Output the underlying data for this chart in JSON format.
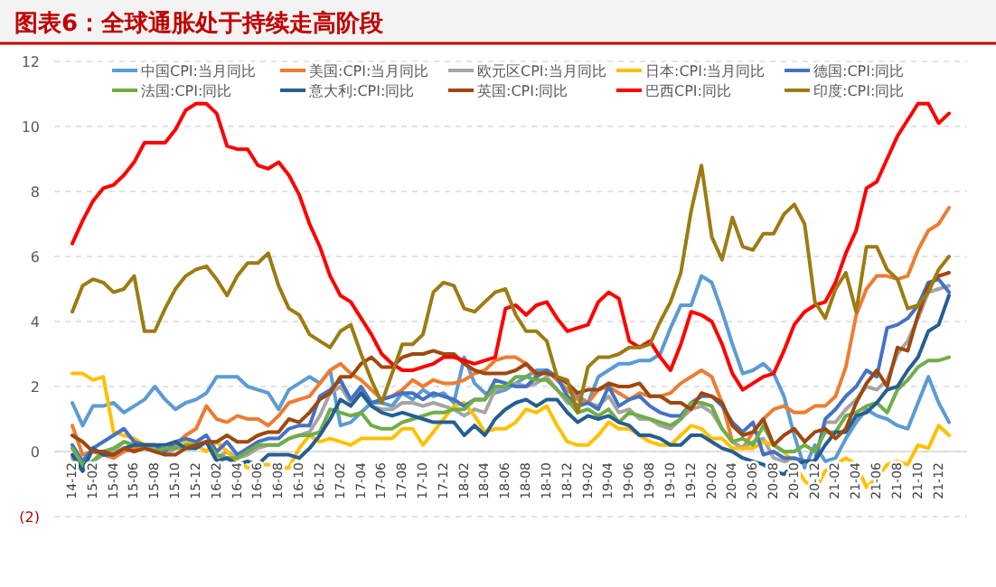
{
  "chart_data": {
    "type": "line",
    "title": "图表6：全球通胀处于持续走高阶段",
    "categories": [
      "14-12",
      null,
      "15-02",
      null,
      "15-04",
      null,
      "15-06",
      null,
      "15-08",
      null,
      "15-10",
      null,
      "15-12",
      null,
      "16-02",
      null,
      "16-04",
      null,
      "16-06",
      null,
      "16-08",
      null,
      "16-10",
      null,
      "16-12",
      null,
      "17-02",
      null,
      "17-04",
      null,
      "17-06",
      null,
      "17-08",
      null,
      "17-10",
      null,
      "17-12",
      null,
      "18-02",
      null,
      "18-04",
      null,
      "18-06",
      null,
      "18-08",
      null,
      "18-10",
      null,
      "18-12",
      null,
      "19-02",
      null,
      "19-04",
      null,
      "19-06",
      null,
      "19-08",
      null,
      "19-10",
      null,
      "19-12",
      null,
      "20-02",
      null,
      "20-04",
      null,
      "20-06",
      null,
      "20-08",
      null,
      "20-10",
      null,
      "20-12",
      null,
      "21-02",
      null,
      "21-04",
      null,
      "21-06",
      null,
      "21-08",
      null,
      "21-10",
      null,
      "21-12",
      null
    ],
    "ylim": [
      -2,
      12
    ],
    "yticks": [
      {
        "value": -2,
        "label": "(2)"
      },
      0,
      2,
      4,
      6,
      8,
      10,
      12
    ],
    "grid": "y",
    "legend": "top",
    "marker": "none",
    "line_style": "solid",
    "series": [
      {
        "name": "中国CPI:当月同比",
        "color": "#5b9bd5",
        "values": [
          1.5,
          0.8,
          1.4,
          1.4,
          1.5,
          1.2,
          1.4,
          1.6,
          2.0,
          1.6,
          1.3,
          1.5,
          1.6,
          1.8,
          2.3,
          2.3,
          2.3,
          2.0,
          1.9,
          1.8,
          1.3,
          1.9,
          2.1,
          2.3,
          2.1,
          2.5,
          0.8,
          0.9,
          1.2,
          1.5,
          1.5,
          1.4,
          1.8,
          1.6,
          1.9,
          1.7,
          1.8,
          1.5,
          2.9,
          2.1,
          1.8,
          1.8,
          1.9,
          2.1,
          2.3,
          2.5,
          2.5,
          2.2,
          1.9,
          1.7,
          1.5,
          2.3,
          2.5,
          2.7,
          2.7,
          2.8,
          2.8,
          3.0,
          3.8,
          4.5,
          4.5,
          5.4,
          5.2,
          4.3,
          3.3,
          2.4,
          2.5,
          2.7,
          2.4,
          1.7,
          0.5,
          -0.5,
          0.2,
          -0.3,
          -0.2,
          0.4,
          0.9,
          1.3,
          1.1,
          1.0,
          0.8,
          0.7,
          1.5,
          2.3,
          1.5,
          0.9
        ]
      },
      {
        "name": "美国:CPI:当月同比",
        "color": "#ed7d31",
        "values": [
          0.8,
          -0.1,
          0.0,
          -0.1,
          -0.2,
          0.0,
          0.1,
          0.2,
          0.2,
          0.0,
          0.2,
          0.5,
          0.7,
          1.4,
          1.0,
          0.9,
          1.1,
          1.0,
          1.0,
          0.8,
          1.1,
          1.5,
          1.6,
          1.7,
          2.1,
          2.5,
          2.7,
          2.4,
          2.2,
          1.9,
          1.6,
          1.7,
          1.9,
          2.2,
          2.0,
          2.2,
          2.1,
          2.1,
          2.2,
          2.4,
          2.5,
          2.8,
          2.9,
          2.9,
          2.7,
          2.3,
          2.5,
          2.2,
          1.9,
          1.6,
          1.5,
          1.9,
          2.0,
          1.8,
          1.6,
          1.8,
          1.7,
          1.7,
          1.8,
          2.1,
          2.3,
          2.5,
          2.3,
          1.5,
          0.3,
          0.1,
          0.6,
          1.0,
          1.3,
          1.4,
          1.2,
          1.2,
          1.4,
          1.4,
          1.7,
          2.6,
          4.2,
          5.0,
          5.4,
          5.4,
          5.3,
          5.4,
          6.2,
          6.8,
          7.0,
          7.5
        ]
      },
      {
        "name": "欧元区CPI:当月同比",
        "color": "#a5a5a5",
        "values": [
          -0.2,
          -0.6,
          -0.3,
          -0.1,
          0.0,
          0.3,
          0.2,
          0.2,
          0.1,
          -0.1,
          0.1,
          0.1,
          0.2,
          0.3,
          -0.2,
          0.0,
          -0.2,
          -0.1,
          0.1,
          0.2,
          0.2,
          0.4,
          0.5,
          0.6,
          1.1,
          1.8,
          2.0,
          1.5,
          1.9,
          1.4,
          1.3,
          1.3,
          1.5,
          1.5,
          1.4,
          1.5,
          1.4,
          1.3,
          1.1,
          1.3,
          1.2,
          1.9,
          2.0,
          2.1,
          2.0,
          2.1,
          2.3,
          1.9,
          1.5,
          1.4,
          1.5,
          1.4,
          1.7,
          1.2,
          1.3,
          1.0,
          1.0,
          0.8,
          0.7,
          1.0,
          1.3,
          1.4,
          1.2,
          0.7,
          0.3,
          0.1,
          0.3,
          0.4,
          -0.2,
          -0.3,
          -0.3,
          -0.3,
          -0.3,
          0.9,
          0.9,
          1.3,
          1.6,
          2.0,
          1.9,
          2.2,
          3.0,
          3.4,
          4.1,
          4.9,
          5.0,
          5.1
        ]
      },
      {
        "name": "日本:CPI:当月同比",
        "color": "#ffc000",
        "values": [
          2.4,
          2.4,
          2.2,
          2.3,
          0.6,
          0.5,
          0.4,
          0.2,
          0.2,
          0.0,
          0.3,
          0.3,
          0.2,
          0.0,
          0.3,
          0.0,
          -0.3,
          -0.5,
          -0.4,
          -0.4,
          -0.5,
          -0.5,
          0.1,
          0.5,
          0.3,
          0.4,
          0.3,
          0.2,
          0.4,
          0.4,
          0.4,
          0.4,
          0.7,
          0.7,
          0.2,
          0.6,
          1.0,
          1.4,
          1.5,
          1.1,
          0.6,
          0.7,
          0.7,
          0.9,
          1.3,
          1.2,
          1.4,
          0.8,
          0.3,
          0.2,
          0.2,
          0.5,
          0.9,
          0.7,
          0.7,
          0.5,
          0.3,
          0.2,
          0.2,
          0.5,
          0.8,
          0.7,
          0.4,
          0.4,
          0.1,
          0.1,
          0.1,
          0.3,
          0.2,
          0.0,
          -0.4,
          -0.9,
          -1.2,
          -0.6,
          -0.4,
          -0.2,
          -0.4,
          -1.1,
          -0.8,
          -0.4,
          -0.3,
          -0.4,
          0.2,
          0.1,
          0.8,
          0.5
        ]
      },
      {
        "name": "德国:CPI:同比",
        "color": "#4472c4",
        "values": [
          0.2,
          -0.3,
          0.1,
          0.3,
          0.5,
          0.7,
          0.3,
          0.2,
          0.2,
          0.0,
          0.3,
          0.4,
          0.3,
          0.5,
          0.0,
          0.3,
          -0.1,
          0.1,
          0.3,
          0.4,
          0.4,
          0.7,
          0.8,
          0.8,
          1.7,
          1.9,
          2.2,
          1.6,
          2.0,
          1.5,
          1.6,
          1.7,
          1.8,
          1.8,
          1.6,
          1.8,
          1.7,
          1.6,
          1.4,
          1.6,
          1.6,
          2.2,
          2.1,
          2.0,
          2.0,
          2.3,
          2.5,
          2.3,
          1.7,
          1.4,
          1.5,
          1.3,
          2.0,
          1.4,
          1.6,
          1.7,
          1.4,
          1.2,
          1.1,
          1.1,
          1.5,
          1.7,
          1.7,
          1.4,
          0.9,
          0.6,
          0.9,
          -0.1,
          0.0,
          -0.2,
          -0.2,
          -0.3,
          -0.3,
          1.0,
          1.3,
          1.7,
          2.0,
          2.5,
          2.3,
          3.8,
          3.9,
          4.1,
          4.5,
          5.2,
          5.3,
          4.9
        ]
      },
      {
        "name": "法国:CPI:同比",
        "color": "#70ad47",
        "values": [
          0.1,
          -0.4,
          -0.3,
          0.0,
          0.1,
          0.3,
          0.2,
          0.2,
          0.0,
          0.1,
          0.1,
          0.2,
          0.2,
          0.3,
          -0.1,
          -0.2,
          -0.2,
          0.0,
          0.2,
          0.2,
          0.2,
          0.4,
          0.5,
          0.5,
          0.6,
          1.3,
          1.2,
          1.1,
          1.2,
          0.8,
          0.7,
          0.7,
          0.9,
          1.0,
          1.1,
          1.2,
          1.2,
          1.3,
          1.3,
          1.6,
          1.6,
          2.0,
          2.0,
          2.3,
          2.3,
          2.2,
          2.2,
          1.9,
          1.6,
          1.2,
          1.3,
          1.1,
          1.3,
          0.9,
          1.2,
          1.1,
          1.0,
          0.9,
          0.8,
          1.0,
          1.5,
          1.5,
          1.4,
          0.7,
          0.3,
          0.4,
          0.2,
          0.8,
          0.2,
          0.0,
          0.0,
          0.2,
          0.0,
          0.6,
          0.6,
          1.1,
          1.2,
          1.4,
          1.5,
          1.2,
          1.9,
          2.2,
          2.6,
          2.8,
          2.8,
          2.9
        ]
      },
      {
        "name": "意大利:CPI:同比",
        "color": "#255e91",
        "values": [
          -0.1,
          -0.6,
          0.1,
          -0.1,
          -0.1,
          0.1,
          0.2,
          0.2,
          0.2,
          0.2,
          0.3,
          0.1,
          0.1,
          0.3,
          -0.3,
          -0.2,
          -0.4,
          -0.3,
          -0.4,
          -0.1,
          -0.1,
          -0.1,
          -0.2,
          0.1,
          0.5,
          1.0,
          1.6,
          1.4,
          1.8,
          1.4,
          1.2,
          1.1,
          1.2,
          1.1,
          1.0,
          0.9,
          0.9,
          0.9,
          0.5,
          0.8,
          0.5,
          1.0,
          1.3,
          1.5,
          1.6,
          1.4,
          1.6,
          1.6,
          1.2,
          0.9,
          1.1,
          1.0,
          1.1,
          0.9,
          0.8,
          0.5,
          0.5,
          0.4,
          0.2,
          0.2,
          0.5,
          0.5,
          0.3,
          0.1,
          0.0,
          -0.2,
          -0.3,
          -0.4,
          -0.6,
          -0.7,
          -0.4,
          -0.3,
          -0.3,
          0.2,
          0.6,
          0.6,
          1.1,
          1.2,
          1.5,
          1.9,
          2.0,
          2.5,
          2.9,
          3.7,
          3.9,
          4.8
        ]
      },
      {
        "name": "英国:CPI:同比",
        "color": "#9e480e",
        "values": [
          0.5,
          0.3,
          0.0,
          0.0,
          -0.1,
          0.1,
          0.0,
          0.1,
          0.0,
          -0.1,
          -0.1,
          0.1,
          0.2,
          0.3,
          0.3,
          0.5,
          0.3,
          0.3,
          0.5,
          0.6,
          0.6,
          1.0,
          0.9,
          1.2,
          1.6,
          1.8,
          2.3,
          2.3,
          2.7,
          2.9,
          2.6,
          2.6,
          2.9,
          3.0,
          3.0,
          3.1,
          3.0,
          3.0,
          2.7,
          2.5,
          2.4,
          2.4,
          2.4,
          2.5,
          2.7,
          2.4,
          2.4,
          2.3,
          2.1,
          1.8,
          1.9,
          1.9,
          2.1,
          2.0,
          2.0,
          2.1,
          1.7,
          1.7,
          1.5,
          1.5,
          1.3,
          1.8,
          1.7,
          1.5,
          0.8,
          0.5,
          0.6,
          1.0,
          0.2,
          0.5,
          0.7,
          0.3,
          0.6,
          0.7,
          0.4,
          0.7,
          1.5,
          2.1,
          2.5,
          2.0,
          3.2,
          3.1,
          4.2,
          5.1,
          5.4,
          5.5
        ]
      },
      {
        "name": "巴西CPI:同比",
        "color": "#ff0000",
        "values": [
          6.4,
          7.1,
          7.7,
          8.1,
          8.2,
          8.5,
          8.9,
          9.5,
          9.5,
          9.5,
          9.9,
          10.5,
          10.7,
          10.7,
          10.4,
          9.4,
          9.3,
          9.3,
          8.8,
          8.7,
          8.9,
          8.5,
          7.9,
          7.0,
          6.3,
          5.4,
          4.8,
          4.6,
          4.1,
          3.6,
          3.0,
          2.7,
          2.5,
          2.5,
          2.6,
          2.7,
          2.9,
          2.9,
          2.8,
          2.7,
          2.8,
          2.9,
          4.4,
          4.5,
          4.2,
          4.5,
          4.6,
          4.1,
          3.7,
          3.8,
          3.9,
          4.6,
          4.9,
          4.7,
          3.4,
          3.2,
          3.4,
          2.9,
          2.5,
          3.3,
          4.3,
          4.2,
          4.0,
          3.3,
          2.4,
          1.9,
          2.1,
          2.3,
          2.4,
          3.1,
          3.9,
          4.3,
          4.5,
          4.6,
          5.2,
          6.1,
          6.8,
          8.1,
          8.3,
          9.0,
          9.7,
          10.2,
          10.7,
          10.7,
          10.1,
          10.4
        ]
      },
      {
        "name": "印度:CPI:同比",
        "color": "#9c7c12",
        "values": [
          4.3,
          5.1,
          5.3,
          5.2,
          4.9,
          5.0,
          5.4,
          3.7,
          3.7,
          4.4,
          5.0,
          5.4,
          5.6,
          5.7,
          5.3,
          4.8,
          5.4,
          5.8,
          5.8,
          6.1,
          5.1,
          4.4,
          4.2,
          3.6,
          3.4,
          3.2,
          3.7,
          3.9,
          3.0,
          2.2,
          1.5,
          2.4,
          3.3,
          3.3,
          3.6,
          4.9,
          5.2,
          5.1,
          4.4,
          4.3,
          4.6,
          4.9,
          5.0,
          4.2,
          3.7,
          3.7,
          3.4,
          2.3,
          2.2,
          1.2,
          2.6,
          2.9,
          2.9,
          3.0,
          3.2,
          3.2,
          3.3,
          4.0,
          4.6,
          5.5,
          7.4,
          8.8,
          6.6,
          5.9,
          7.2,
          6.3,
          6.2,
          6.7,
          6.7,
          7.3,
          7.6,
          7.0,
          4.6,
          4.1,
          5.0,
          5.5,
          4.3,
          6.3,
          6.3,
          5.6,
          5.3,
          4.4,
          4.5,
          4.9,
          5.6,
          6.0
        ]
      }
    ]
  }
}
